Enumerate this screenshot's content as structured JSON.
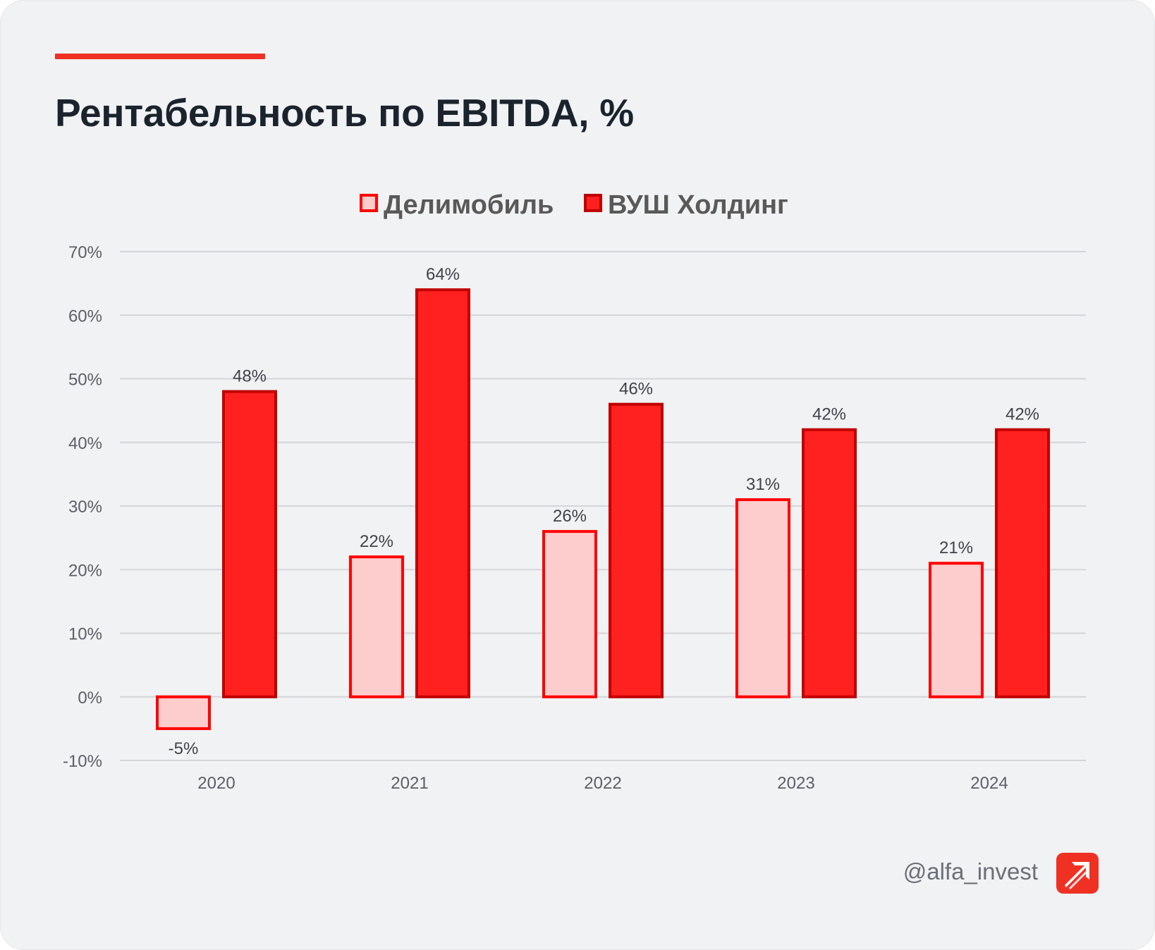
{
  "title": "Рентабельность по EBITDA, %",
  "handle": "@alfa_invest",
  "logo_icon": "alfa-arrow-logo-icon",
  "colors": {
    "accent": "#ef3124",
    "delimobil_fill": "#fdcdcd",
    "delimobil_stroke": "#ff0000",
    "vush_fill": "#ff2020",
    "vush_stroke": "#c00000"
  },
  "chart_data": {
    "type": "bar",
    "categories": [
      "2020",
      "2021",
      "2022",
      "2023",
      "2024"
    ],
    "series": [
      {
        "name": "Делимобиль",
        "values": [
          -5,
          22,
          26,
          31,
          21
        ],
        "labels": [
          "-5%",
          "22%",
          "26%",
          "31%",
          "21%"
        ]
      },
      {
        "name": "ВУШ Холдинг",
        "values": [
          48,
          64,
          46,
          42,
          42
        ],
        "labels": [
          "48%",
          "64%",
          "46%",
          "42%",
          "42%"
        ]
      }
    ],
    "yticks": [
      "70%",
      "60%",
      "50%",
      "40%",
      "30%",
      "20%",
      "10%",
      "0%",
      "-10%"
    ],
    "ylim": [
      -10,
      70
    ],
    "grid": true,
    "legend_position": "top-center"
  }
}
